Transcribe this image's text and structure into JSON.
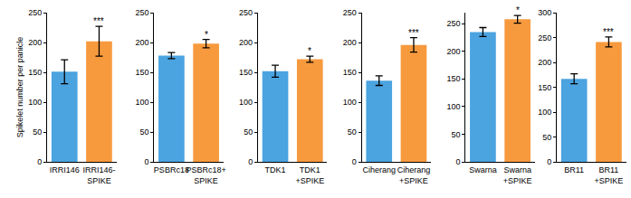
{
  "chart_data": [
    {
      "type": "bar",
      "ylabel": "Spikelet number per panicle",
      "categories": [
        "IRRI146",
        "IRRI146-\nSPIKE"
      ],
      "values": [
        151,
        202
      ],
      "errors": [
        20,
        25
      ],
      "colors": [
        "#4ba3e0",
        "#f79a3e"
      ],
      "ylim": [
        0,
        250
      ],
      "yticks": [
        0,
        50,
        100,
        150,
        200,
        250
      ],
      "significance": "***",
      "grid": false
    },
    {
      "type": "bar",
      "categories": [
        "PSBRc18",
        "PSBRc18+\nSPIKE"
      ],
      "values": [
        178,
        198
      ],
      "errors": [
        5,
        7
      ],
      "colors": [
        "#4ba3e0",
        "#f79a3e"
      ],
      "ylim": [
        0,
        250
      ],
      "yticks": [
        0,
        50,
        100,
        150,
        200,
        250
      ],
      "significance": "*",
      "grid": false
    },
    {
      "type": "bar",
      "categories": [
        "TDK1",
        "TDK1\n+SPIKE"
      ],
      "values": [
        152,
        172
      ],
      "errors": [
        10,
        5
      ],
      "colors": [
        "#4ba3e0",
        "#f79a3e"
      ],
      "ylim": [
        0,
        250
      ],
      "yticks": [
        0,
        50,
        100,
        150,
        200,
        250
      ],
      "significance": "*",
      "grid": false
    },
    {
      "type": "bar",
      "categories": [
        "Ciherang",
        "Ciherang\n+SPIKE"
      ],
      "values": [
        136,
        196
      ],
      "errors": [
        8,
        12
      ],
      "colors": [
        "#4ba3e0",
        "#f79a3e"
      ],
      "ylim": [
        0,
        250
      ],
      "yticks": [
        0,
        50,
        100,
        150,
        200,
        250
      ],
      "significance": "***",
      "grid": false
    },
    {
      "type": "bar",
      "categories": [
        "Swarna",
        "Swarna\n+SPIKE"
      ],
      "values": [
        235,
        258
      ],
      "errors": [
        8,
        7
      ],
      "colors": [
        "#4ba3e0",
        "#f79a3e"
      ],
      "ylim": [
        0,
        270
      ],
      "yticks": [
        0,
        50,
        100,
        150,
        200,
        250
      ],
      "significance": "*",
      "grid": false
    },
    {
      "type": "bar",
      "categories": [
        "BR11",
        "BR11\n+SPIKE"
      ],
      "values": [
        167,
        241
      ],
      "errors": [
        10,
        10
      ],
      "colors": [
        "#4ba3e0",
        "#f79a3e"
      ],
      "ylim": [
        0,
        300
      ],
      "yticks": [
        0,
        50,
        100,
        150,
        200,
        250,
        300
      ],
      "significance": "***",
      "grid": false
    }
  ]
}
